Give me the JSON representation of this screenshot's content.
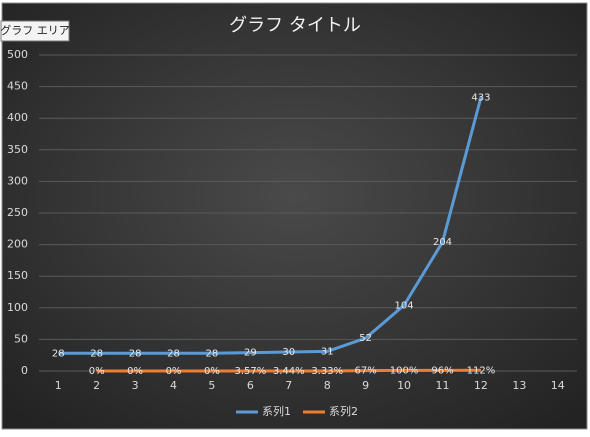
{
  "tooltip": "グラフ エリア",
  "chart_data": {
    "type": "line",
    "title": "グラフ タイトル",
    "categories": [
      "1",
      "2",
      "3",
      "4",
      "5",
      "6",
      "7",
      "8",
      "9",
      "10",
      "11",
      "12",
      "13",
      "14"
    ],
    "series": [
      {
        "name": "系列1",
        "color": "#5b9bd5",
        "values": [
          28,
          28,
          28,
          28,
          28,
          29,
          30,
          31,
          52,
          104,
          204,
          433,
          null,
          null
        ]
      },
      {
        "name": "系列2",
        "color": "#ed7d31",
        "values": [
          null,
          0,
          0,
          0,
          0,
          0.0357,
          0.0344,
          0.0333,
          0.67,
          1,
          0.96,
          1.12,
          null,
          null
        ],
        "value_labels": [
          null,
          "0%",
          "0%",
          "0%",
          "0%",
          "3.57%",
          "3.44%",
          "3.33%",
          "67%",
          "100%",
          "96%",
          "112%",
          null,
          null
        ]
      }
    ],
    "ylim": [
      0,
      500
    ],
    "yticks": [
      0,
      50,
      100,
      150,
      200,
      250,
      300,
      350,
      400,
      450,
      500
    ],
    "grid": true,
    "legend": "bottom"
  }
}
